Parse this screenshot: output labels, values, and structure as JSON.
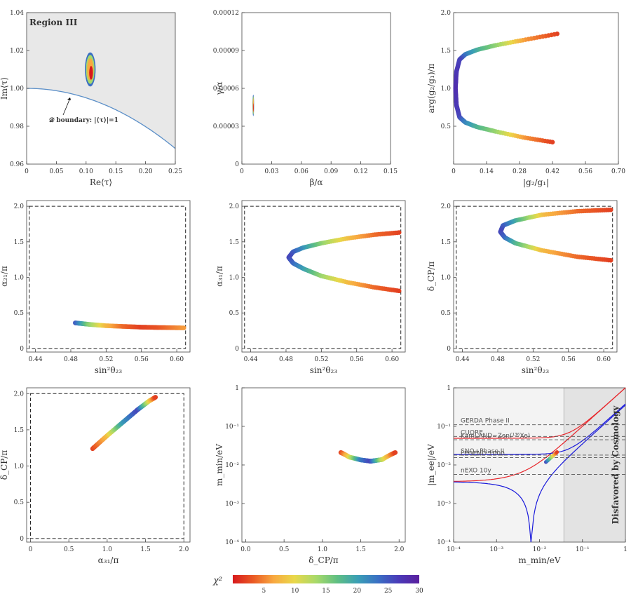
{
  "colors": {
    "scale": [
      "#d7191c",
      "#ea5a25",
      "#f8a940",
      "#e9d84a",
      "#a6d96a",
      "#5fbf83",
      "#3a9fb5",
      "#3a6fc4",
      "#4a3ab8",
      "#5a1f9e"
    ],
    "boundary": "#5b8fc8",
    "region_fill": "#e8e8e8",
    "cosmo_fill": "#e3e3e3",
    "exp_line": "#555555",
    "no_band": "#e8262b",
    "io_band": "#1a1adb"
  },
  "chart_data": [
    {
      "id": "p1",
      "type": "scatter",
      "xlabel": "Re⟨τ⟩",
      "ylabel": "Im⟨τ⟩",
      "xlim": [
        0,
        0.25
      ],
      "ylim": [
        0.96,
        1.04
      ],
      "xticks": [
        0,
        0.05,
        0.1,
        0.15,
        0.2,
        0.25
      ],
      "xticklabels": [
        "0",
        "0.05",
        "0.10",
        "0.15",
        "0.20",
        "0.25"
      ],
      "yticks": [
        0.96,
        0.98,
        1.0,
        1.02,
        1.04
      ],
      "yticklabels": [
        "0.96",
        "0.98",
        "1.00",
        "1.02",
        "1.04"
      ],
      "region_label": "Region III",
      "annotation": "𝒟 boundary: |⟨τ⟩|=1",
      "blob": {
        "x": 0.107,
        "y": 1.01,
        "x_half_width": 0.009,
        "y_half_height": 0.009
      }
    },
    {
      "id": "p2",
      "type": "scatter",
      "xlabel": "β/α",
      "ylabel": "γ/α",
      "xlim": [
        0,
        0.15
      ],
      "ylim": [
        0,
        0.00012
      ],
      "xticks": [
        0,
        0.03,
        0.06,
        0.09,
        0.12,
        0.15
      ],
      "xticklabels": [
        "0",
        "0.03",
        "0.06",
        "0.09",
        "0.12",
        "0.15"
      ],
      "yticks": [
        0,
        3e-05,
        6e-05,
        9e-05,
        0.00012
      ],
      "yticklabels": [
        "0",
        "0.00003",
        "0.00006",
        "0.00009",
        "0.00012"
      ],
      "blob": {
        "x": 0.0115,
        "y": 4.65e-05,
        "x_half_width": 0.0008,
        "y_half_height": 8.5e-06
      }
    },
    {
      "id": "p3",
      "type": "scatter",
      "xlabel": "|g₂/g₁|",
      "ylabel": "arg(g₂/g₁)/π",
      "xlim": [
        0,
        0.7
      ],
      "ylim": [
        0,
        2.0
      ],
      "xticks": [
        0,
        0.14,
        0.28,
        0.42,
        0.56,
        0.7
      ],
      "xticklabels": [
        "0",
        "0.14",
        "0.28",
        "0.42",
        "0.56",
        "0.70"
      ],
      "yticks": [
        0.5,
        1.0,
        1.5,
        2.0
      ],
      "yticklabels": [
        "0.5",
        "1.0",
        "1.5",
        "2.0"
      ],
      "curve": {
        "x": [
          0.44,
          0.3,
          0.18,
          0.1,
          0.05,
          0.025,
          0.012,
          0.008,
          0.012,
          0.025,
          0.05,
          0.1,
          0.18,
          0.3,
          0.42
        ],
        "y": [
          1.72,
          1.64,
          1.57,
          1.51,
          1.45,
          1.38,
          1.22,
          1.0,
          0.78,
          0.62,
          0.55,
          0.49,
          0.43,
          0.35,
          0.29
        ],
        "chi2": [
          2,
          6,
          14,
          18,
          22,
          26,
          27,
          28,
          27,
          26,
          22,
          18,
          14,
          6,
          2
        ]
      }
    },
    {
      "id": "p4",
      "type": "scatter",
      "xlabel": "sin²θ₂₃",
      "ylabel": "α₂₁/π",
      "xlim": [
        0.43,
        0.615
      ],
      "ylim": [
        -0.05,
        2.08
      ],
      "box": [
        0.433,
        0,
        0.61,
        2.0
      ],
      "xticks": [
        0.44,
        0.48,
        0.52,
        0.56,
        0.6
      ],
      "xticklabels": [
        "0.44",
        "0.48",
        "0.52",
        "0.56",
        "0.60"
      ],
      "yticks": [
        0,
        0.5,
        1.0,
        1.5,
        2.0
      ],
      "yticklabels": [
        "0",
        "0.5",
        "1.0",
        "1.5",
        "2.0"
      ],
      "curve": {
        "x": [
          0.485,
          0.5,
          0.52,
          0.54,
          0.56,
          0.58,
          0.608
        ],
        "y": [
          0.36,
          0.34,
          0.32,
          0.31,
          0.3,
          0.295,
          0.29
        ],
        "chi2": [
          25,
          15,
          8,
          4,
          2,
          3,
          6
        ]
      }
    },
    {
      "id": "p5",
      "type": "scatter",
      "xlabel": "sin²θ₂₃",
      "ylabel": "α₃₁/π",
      "xlim": [
        0.43,
        0.615
      ],
      "ylim": [
        -0.05,
        2.08
      ],
      "box": [
        0.433,
        0,
        0.61,
        2.0
      ],
      "xticks": [
        0.44,
        0.48,
        0.52,
        0.56,
        0.6
      ],
      "xticklabels": [
        "0.44",
        "0.48",
        "0.52",
        "0.56",
        "0.60"
      ],
      "yticks": [
        0,
        0.5,
        1.0,
        1.5,
        2.0
      ],
      "yticklabels": [
        "0",
        "0.5",
        "1.0",
        "1.5",
        "2.0"
      ],
      "curve": {
        "x": [
          0.608,
          0.58,
          0.55,
          0.52,
          0.5,
          0.488,
          0.483,
          0.488,
          0.5,
          0.52,
          0.55,
          0.58,
          0.608
        ],
        "y": [
          1.63,
          1.6,
          1.55,
          1.48,
          1.42,
          1.36,
          1.28,
          1.2,
          1.12,
          1.02,
          0.93,
          0.86,
          0.81
        ],
        "chi2": [
          2,
          4,
          8,
          14,
          20,
          24,
          26,
          24,
          20,
          14,
          8,
          4,
          2
        ]
      }
    },
    {
      "id": "p6",
      "type": "scatter",
      "xlabel": "sin²θ₂₃",
      "ylabel": "δ_CP/π",
      "xlim": [
        0.43,
        0.615
      ],
      "ylim": [
        -0.05,
        2.08
      ],
      "box": [
        0.433,
        0,
        0.61,
        2.0
      ],
      "xticks": [
        0.44,
        0.48,
        0.52,
        0.56,
        0.6
      ],
      "xticklabels": [
        "0.44",
        "0.48",
        "0.52",
        "0.56",
        "0.60"
      ],
      "yticks": [
        0,
        0.5,
        1.0,
        1.5,
        2.0
      ],
      "yticklabels": [
        "0",
        "0.5",
        "1.0",
        "1.5",
        "2.0"
      ],
      "curve": {
        "x": [
          0.608,
          0.57,
          0.53,
          0.5,
          0.486,
          0.483,
          0.488,
          0.5,
          0.53,
          0.57,
          0.608
        ],
        "y": [
          1.95,
          1.93,
          1.88,
          1.8,
          1.73,
          1.64,
          1.56,
          1.48,
          1.38,
          1.29,
          1.24
        ],
        "chi2": [
          2,
          4,
          8,
          18,
          24,
          26,
          24,
          18,
          8,
          4,
          2
        ]
      }
    },
    {
      "id": "p7",
      "type": "scatter",
      "xlabel": "α₃₁/π",
      "ylabel": "δ_CP/π",
      "xlim": [
        -0.05,
        2.08
      ],
      "ylim": [
        -0.05,
        2.08
      ],
      "box": [
        0,
        0,
        2.0,
        2.0
      ],
      "xticks": [
        0,
        0.5,
        1.0,
        1.5,
        2.0
      ],
      "xticklabels": [
        "0",
        "0.5",
        "1.0",
        "1.5",
        "2.0"
      ],
      "yticks": [
        0,
        0.5,
        1.0,
        1.5,
        2.0
      ],
      "yticklabels": [
        "0",
        "0.5",
        "1.0",
        "1.5",
        "2.0"
      ],
      "curve": {
        "x": [
          0.81,
          1.0,
          1.2,
          1.4,
          1.55,
          1.63
        ],
        "y": [
          1.24,
          1.42,
          1.6,
          1.78,
          1.9,
          1.95
        ],
        "chi2": [
          2,
          8,
          20,
          26,
          10,
          2
        ]
      }
    },
    {
      "id": "p8",
      "type": "scatter",
      "xlabel": "δ_CP/π",
      "ylabel": "m_min/eV",
      "xlim": [
        -0.05,
        2.08
      ],
      "ylim_log10": [
        -4,
        0
      ],
      "xticks": [
        0,
        0.5,
        1.0,
        1.5,
        2.0
      ],
      "xticklabels": [
        "0.0",
        "0.5",
        "1.0",
        "1.5",
        "2.0"
      ],
      "yticks_log10": [
        -4,
        -3,
        -2,
        -1,
        0
      ],
      "yticklabels": [
        "10⁻⁴",
        "10⁻³",
        "10⁻²",
        "10⁻¹",
        "1"
      ],
      "curve": {
        "x": [
          1.24,
          1.35,
          1.5,
          1.63,
          1.78,
          1.95
        ],
        "y": [
          0.021,
          0.016,
          0.0135,
          0.0125,
          0.0138,
          0.021
        ],
        "chi2": [
          2,
          10,
          22,
          26,
          12,
          2
        ]
      }
    },
    {
      "id": "p9",
      "type": "line",
      "xlabel": "m_min/eV",
      "ylabel": "|m_ee|/eV",
      "xlim_log10": [
        -4,
        0
      ],
      "ylim_log10": [
        -4,
        0
      ],
      "xticks_log10": [
        -4,
        -3,
        -2,
        -1,
        0
      ],
      "xticklabels": [
        "10⁻⁴",
        "10⁻³",
        "10⁻²",
        "10⁻¹",
        "1"
      ],
      "yticks_log10": [
        -4,
        -3,
        -2,
        -1,
        0
      ],
      "yticklabels": [
        "10⁻⁴",
        "10⁻³",
        "10⁻²",
        "10⁻¹",
        "1"
      ],
      "cosmology_bound_eV": 0.037,
      "cosmology_label": "Disfavored by Cosmology",
      "experiments": [
        {
          "name": "GERDA Phase II",
          "value": 0.11
        },
        {
          "name": "CUORE",
          "value": 0.055
        },
        {
          "name": "KamLAND−Zen(¹³⁶Xe)",
          "value": 0.045
        },
        {
          "name": "SNO+Phase II",
          "value": 0.018
        },
        {
          "name": "LEGEND 1000",
          "value": 0.0155
        },
        {
          "name": "nEXO 10y",
          "value": 0.0057
        }
      ],
      "point": {
        "x": 0.019,
        "y": 0.016,
        "dx_log": 0.13,
        "dy_log": 0.13
      }
    }
  ],
  "colorbar": {
    "label": "χ²",
    "min": 0,
    "max": 30,
    "ticks": [
      5,
      10,
      15,
      20,
      25,
      30
    ],
    "ticklabels": [
      "5",
      "10",
      "15",
      "20",
      "25",
      "30"
    ]
  }
}
